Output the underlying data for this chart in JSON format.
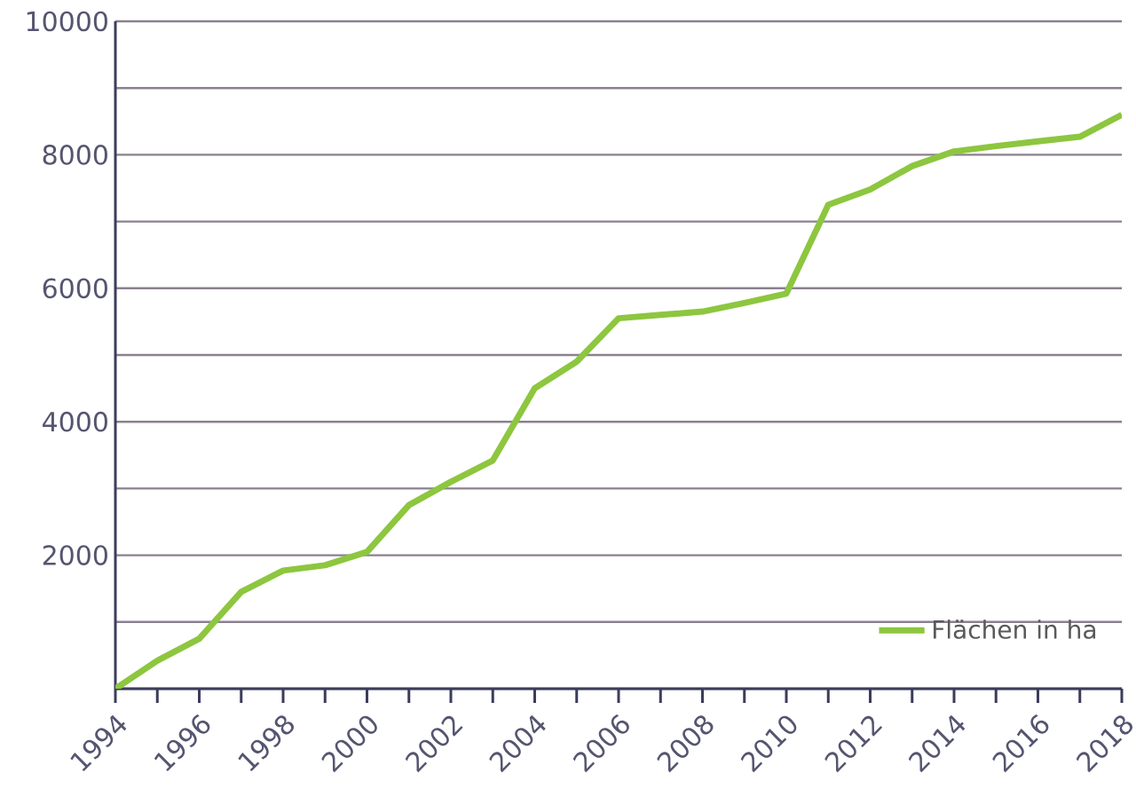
{
  "chart_data": {
    "type": "line",
    "x": [
      1994,
      1995,
      1996,
      1997,
      1998,
      1999,
      2000,
      2001,
      2002,
      2003,
      2004,
      2005,
      2006,
      2007,
      2008,
      2009,
      2010,
      2011,
      2012,
      2013,
      2014,
      2015,
      2016,
      2017,
      2018
    ],
    "series": [
      {
        "name": "Flächen in ha",
        "color": "#8dc63f",
        "values": [
          0,
          420,
          750,
          1450,
          1770,
          1850,
          2050,
          2750,
          3100,
          3420,
          4500,
          4900,
          5550,
          5600,
          5650,
          5780,
          5920,
          7250,
          7480,
          7830,
          8050,
          8130,
          8200,
          8270,
          8600
        ]
      }
    ],
    "xlim": [
      1994,
      2018
    ],
    "xticks": [
      1994,
      {
        "value": 1995,
        "label": null
      },
      1996,
      {
        "value": 1997,
        "label": null
      },
      1998,
      {
        "value": 1999,
        "label": null
      },
      2000,
      {
        "value": 2001,
        "label": null
      },
      2002,
      {
        "value": 2003,
        "label": null
      },
      2004,
      {
        "value": 2005,
        "label": null
      },
      2006,
      {
        "value": 2007,
        "label": null
      },
      2008,
      {
        "value": 2009,
        "label": null
      },
      2010,
      {
        "value": 2011,
        "label": null
      },
      2012,
      {
        "value": 2013,
        "label": null
      },
      2014,
      {
        "value": 2015,
        "label": null
      },
      2016,
      {
        "value": 2017,
        "label": null
      },
      2018
    ],
    "ylim": [
      0,
      10000
    ],
    "yticks": [
      {
        "value": 0,
        "label": null
      },
      {
        "value": 1000,
        "label": null
      },
      2000,
      {
        "value": 3000,
        "label": null
      },
      4000,
      {
        "value": 5000,
        "label": null
      },
      6000,
      {
        "value": 7000,
        "label": null
      },
      8000,
      {
        "value": 9000,
        "label": null
      },
      10000
    ],
    "grid": "y",
    "legend": "bottom right",
    "marker": "none",
    "line_style": "solid"
  }
}
